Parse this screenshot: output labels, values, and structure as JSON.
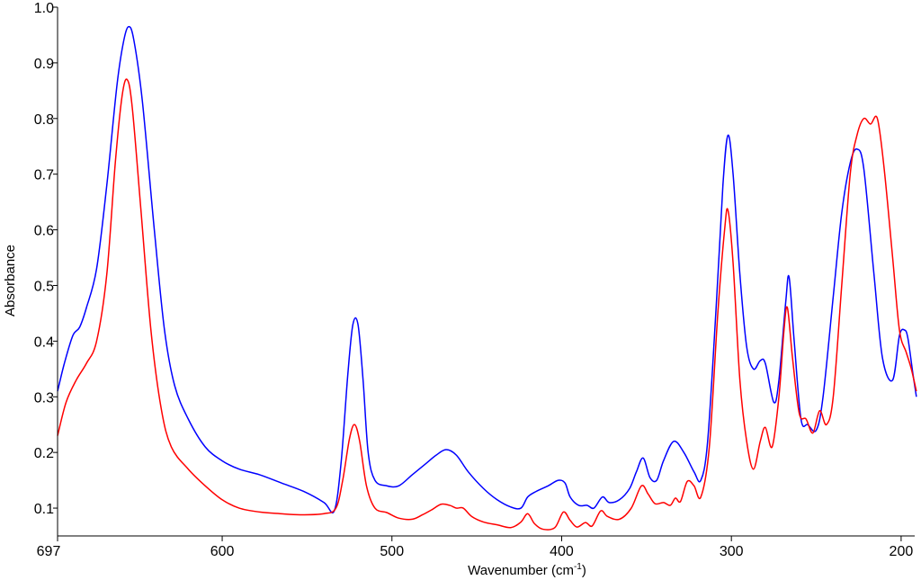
{
  "chart_data": {
    "type": "line",
    "xlabel": "Wavenumber (cm",
    "xlabel_sup": "-1",
    "xlabel_suffix": ")",
    "ylabel": "Absorbance",
    "xlim": [
      697,
      192
    ],
    "ylim": [
      0.05,
      1.0
    ],
    "x_ticks": [
      {
        "value": 697,
        "label": "697"
      },
      {
        "value": 600,
        "label": "600"
      },
      {
        "value": 500,
        "label": "500"
      },
      {
        "value": 400,
        "label": "400"
      },
      {
        "value": 300,
        "label": "300"
      },
      {
        "value": 200,
        "label": "200"
      }
    ],
    "y_ticks": [
      {
        "value": 0.1,
        "label": "0.1"
      },
      {
        "value": 0.2,
        "label": "0.2"
      },
      {
        "value": 0.3,
        "label": "0.3"
      },
      {
        "value": 0.4,
        "label": "0.4"
      },
      {
        "value": 0.5,
        "label": "0.5"
      },
      {
        "value": 0.6,
        "label": "0.6"
      },
      {
        "value": 0.7,
        "label": "0.7"
      },
      {
        "value": 0.8,
        "label": "0.8"
      },
      {
        "value": 0.9,
        "label": "0.9"
      },
      {
        "value": 1.0,
        "label": "1.0"
      }
    ],
    "grid": false,
    "series": [
      {
        "color": "#0000ff",
        "points": [
          [
            697,
            0.31
          ],
          [
            693,
            0.36
          ],
          [
            688,
            0.41
          ],
          [
            684,
            0.425
          ],
          [
            680,
            0.46
          ],
          [
            674,
            0.53
          ],
          [
            668,
            0.68
          ],
          [
            662,
            0.86
          ],
          [
            658,
            0.94
          ],
          [
            655,
            0.965
          ],
          [
            652,
            0.94
          ],
          [
            647,
            0.83
          ],
          [
            640,
            0.6
          ],
          [
            634,
            0.42
          ],
          [
            628,
            0.32
          ],
          [
            620,
            0.26
          ],
          [
            610,
            0.21
          ],
          [
            600,
            0.185
          ],
          [
            590,
            0.17
          ],
          [
            578,
            0.16
          ],
          [
            565,
            0.145
          ],
          [
            552,
            0.13
          ],
          [
            540,
            0.11
          ],
          [
            534,
            0.095
          ],
          [
            530,
            0.18
          ],
          [
            526,
            0.34
          ],
          [
            523,
            0.43
          ],
          [
            520,
            0.43
          ],
          [
            517,
            0.33
          ],
          [
            514,
            0.2
          ],
          [
            510,
            0.15
          ],
          [
            503,
            0.14
          ],
          [
            496,
            0.14
          ],
          [
            488,
            0.16
          ],
          [
            480,
            0.18
          ],
          [
            474,
            0.195
          ],
          [
            468,
            0.205
          ],
          [
            462,
            0.195
          ],
          [
            455,
            0.165
          ],
          [
            446,
            0.135
          ],
          [
            438,
            0.115
          ],
          [
            430,
            0.102
          ],
          [
            424,
            0.1
          ],
          [
            420,
            0.12
          ],
          [
            415,
            0.13
          ],
          [
            408,
            0.14
          ],
          [
            402,
            0.15
          ],
          [
            398,
            0.145
          ],
          [
            395,
            0.12
          ],
          [
            390,
            0.105
          ],
          [
            385,
            0.105
          ],
          [
            381,
            0.1
          ],
          [
            376,
            0.12
          ],
          [
            372,
            0.11
          ],
          [
            366,
            0.115
          ],
          [
            360,
            0.135
          ],
          [
            356,
            0.165
          ],
          [
            352,
            0.19
          ],
          [
            348,
            0.155
          ],
          [
            344,
            0.15
          ],
          [
            340,
            0.185
          ],
          [
            334,
            0.22
          ],
          [
            328,
            0.2
          ],
          [
            322,
            0.165
          ],
          [
            318,
            0.15
          ],
          [
            314,
            0.22
          ],
          [
            309,
            0.46
          ],
          [
            305,
            0.68
          ],
          [
            302,
            0.77
          ],
          [
            299,
            0.7
          ],
          [
            295,
            0.52
          ],
          [
            291,
            0.39
          ],
          [
            287,
            0.35
          ],
          [
            283,
            0.365
          ],
          [
            280,
            0.36
          ],
          [
            275,
            0.29
          ],
          [
            272,
            0.33
          ],
          [
            268,
            0.47
          ],
          [
            266,
            0.515
          ],
          [
            263,
            0.4
          ],
          [
            259,
            0.26
          ],
          [
            255,
            0.25
          ],
          [
            250,
            0.24
          ],
          [
            246,
            0.3
          ],
          [
            240,
            0.48
          ],
          [
            235,
            0.63
          ],
          [
            230,
            0.72
          ],
          [
            226,
            0.745
          ],
          [
            222,
            0.71
          ],
          [
            216,
            0.52
          ],
          [
            211,
            0.37
          ],
          [
            205,
            0.33
          ],
          [
            201,
            0.41
          ],
          [
            198,
            0.42
          ],
          [
            196,
            0.405
          ],
          [
            193,
            0.34
          ],
          [
            191,
            0.3
          ]
        ]
      },
      {
        "color": "#ff0000",
        "points": [
          [
            697,
            0.23
          ],
          [
            692,
            0.29
          ],
          [
            686,
            0.33
          ],
          [
            680,
            0.36
          ],
          [
            674,
            0.4
          ],
          [
            668,
            0.52
          ],
          [
            663,
            0.72
          ],
          [
            659,
            0.84
          ],
          [
            656,
            0.87
          ],
          [
            653,
            0.82
          ],
          [
            648,
            0.64
          ],
          [
            642,
            0.42
          ],
          [
            636,
            0.28
          ],
          [
            630,
            0.21
          ],
          [
            620,
            0.17
          ],
          [
            610,
            0.14
          ],
          [
            600,
            0.115
          ],
          [
            590,
            0.1
          ],
          [
            578,
            0.093
          ],
          [
            566,
            0.09
          ],
          [
            554,
            0.088
          ],
          [
            540,
            0.09
          ],
          [
            533,
            0.1
          ],
          [
            529,
            0.15
          ],
          [
            525,
            0.225
          ],
          [
            522,
            0.25
          ],
          [
            519,
            0.22
          ],
          [
            515,
            0.14
          ],
          [
            510,
            0.1
          ],
          [
            503,
            0.092
          ],
          [
            496,
            0.082
          ],
          [
            488,
            0.08
          ],
          [
            482,
            0.088
          ],
          [
            476,
            0.098
          ],
          [
            471,
            0.107
          ],
          [
            466,
            0.105
          ],
          [
            462,
            0.1
          ],
          [
            458,
            0.1
          ],
          [
            453,
            0.085
          ],
          [
            446,
            0.075
          ],
          [
            438,
            0.07
          ],
          [
            430,
            0.065
          ],
          [
            424,
            0.075
          ],
          [
            420,
            0.09
          ],
          [
            416,
            0.072
          ],
          [
            411,
            0.062
          ],
          [
            404,
            0.065
          ],
          [
            399,
            0.093
          ],
          [
            395,
            0.078
          ],
          [
            391,
            0.066
          ],
          [
            386,
            0.074
          ],
          [
            382,
            0.068
          ],
          [
            377,
            0.095
          ],
          [
            373,
            0.085
          ],
          [
            366,
            0.08
          ],
          [
            359,
            0.1
          ],
          [
            353,
            0.14
          ],
          [
            349,
            0.125
          ],
          [
            345,
            0.108
          ],
          [
            340,
            0.11
          ],
          [
            336,
            0.105
          ],
          [
            333,
            0.118
          ],
          [
            330,
            0.112
          ],
          [
            326,
            0.148
          ],
          [
            322,
            0.14
          ],
          [
            318,
            0.12
          ],
          [
            313,
            0.21
          ],
          [
            308,
            0.45
          ],
          [
            304,
            0.6
          ],
          [
            302,
            0.635
          ],
          [
            299,
            0.54
          ],
          [
            295,
            0.33
          ],
          [
            291,
            0.22
          ],
          [
            287,
            0.17
          ],
          [
            283,
            0.22
          ],
          [
            280,
            0.245
          ],
          [
            276,
            0.21
          ],
          [
            272,
            0.3
          ],
          [
            269,
            0.42
          ],
          [
            267,
            0.46
          ],
          [
            264,
            0.37
          ],
          [
            260,
            0.27
          ],
          [
            256,
            0.26
          ],
          [
            252,
            0.235
          ],
          [
            248,
            0.275
          ],
          [
            244,
            0.25
          ],
          [
            240,
            0.3
          ],
          [
            235,
            0.5
          ],
          [
            230,
            0.7
          ],
          [
            226,
            0.77
          ],
          [
            222,
            0.8
          ],
          [
            218,
            0.79
          ],
          [
            214,
            0.8
          ],
          [
            210,
            0.71
          ],
          [
            205,
            0.55
          ],
          [
            201,
            0.42
          ],
          [
            197,
            0.38
          ],
          [
            194,
            0.35
          ],
          [
            191,
            0.31
          ]
        ]
      }
    ]
  }
}
